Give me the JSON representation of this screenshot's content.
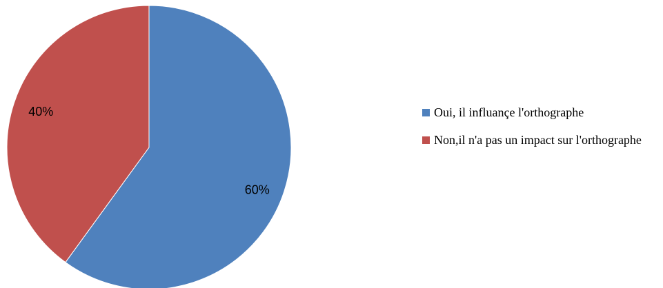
{
  "chart_data": {
    "type": "pie",
    "categories": [
      "Oui, il influançe l'orthographe",
      "Non,il n'a pas un impact sur l'orthographe"
    ],
    "values": [
      60,
      40
    ],
    "value_labels": [
      "60%",
      "40%"
    ],
    "colors": [
      "#4f81bd",
      "#c0504d"
    ],
    "legend": "right"
  }
}
